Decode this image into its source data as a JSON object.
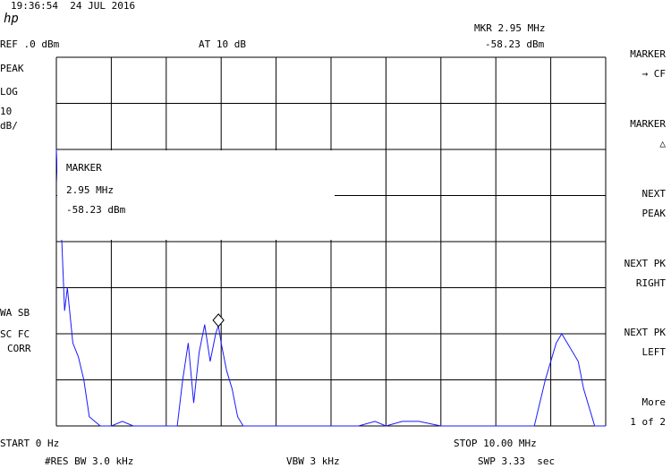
{
  "header": {
    "time_date": "19:36:54  24 JUL 2016",
    "logo": "hp",
    "ref_level": "REF .0 dBm",
    "attenuation": "AT 10 dB",
    "marker_readout_freq": "MKR 2.95 MHz",
    "marker_readout_amp": "-58.23 dBm"
  },
  "left_annotations": {
    "detector": "PEAK",
    "scale_mode": "LOG",
    "scale_value": "10",
    "scale_unit": "dB/",
    "flags_1": "WA SB",
    "flags_2": "SC FC",
    "flags_3": "CORR"
  },
  "marker_box": {
    "title": "MARKER",
    "freq": "2.95 MHz",
    "amp": "-58.23 dBm"
  },
  "footer": {
    "start": "START 0 Hz",
    "stop": "STOP 10.00 MHz",
    "rbw": "#RES BW 3.0 kHz",
    "vbw": "VBW 3 kHz",
    "sweep": "SWP 3.33  sec"
  },
  "softkeys": [
    {
      "line1": "MARKER",
      "line2": "→ CF"
    },
    {
      "line1": "MARKER",
      "line2": "△"
    },
    {
      "line1": "NEXT",
      "line2": "PEAK"
    },
    {
      "line1": "NEXT PK",
      "line2": "RIGHT"
    },
    {
      "line1": "NEXT PK",
      "line2": "LEFT"
    },
    {
      "line1": "More",
      "line2": "1 of 2"
    }
  ],
  "colors": {
    "trace": "#1a1aff",
    "grid": "#000000",
    "background": "#ffffff"
  },
  "chart_data": {
    "type": "line",
    "x_start_mhz": 0,
    "x_stop_mhz": 10,
    "ref_level_dbm": 0,
    "db_per_div": 10,
    "marker": {
      "x_mhz": 2.95,
      "y_dbm": -58.23
    },
    "series": [
      {
        "x_mhz": [
          0.0,
          0.05,
          0.1,
          0.15,
          0.2,
          0.3,
          0.4,
          0.5,
          0.6,
          0.8,
          1.0,
          1.2,
          1.4,
          1.6,
          1.8,
          2.0,
          2.2,
          2.3,
          2.4,
          2.5,
          2.6,
          2.7,
          2.8,
          2.9,
          2.95,
          3.0,
          3.1,
          3.2,
          3.3,
          3.4,
          3.6,
          4.0,
          4.5,
          5.0,
          5.5,
          5.8,
          6.0,
          6.3,
          6.6,
          7.0,
          7.5,
          8.0,
          8.5,
          8.7,
          8.9,
          9.1,
          9.2,
          9.3,
          9.4,
          9.5,
          9.6,
          9.8,
          10.0
        ],
        "y_dbm": [
          -20,
          -35,
          -40,
          -55,
          -50,
          -62,
          -65,
          -70,
          -78,
          -80,
          -80,
          -79,
          -80,
          -80,
          -80,
          -80,
          -80,
          -70,
          -62,
          -75,
          -64,
          -58,
          -66,
          -60,
          -58.23,
          -62,
          -68,
          -72,
          -78,
          -80,
          -80,
          -80,
          -80,
          -80,
          -80,
          -79,
          -80,
          -79,
          -79,
          -80,
          -80,
          -80,
          -80,
          -80,
          -70,
          -62,
          -60,
          -62,
          -64,
          -66,
          -72,
          -80,
          -80
        ]
      }
    ]
  }
}
